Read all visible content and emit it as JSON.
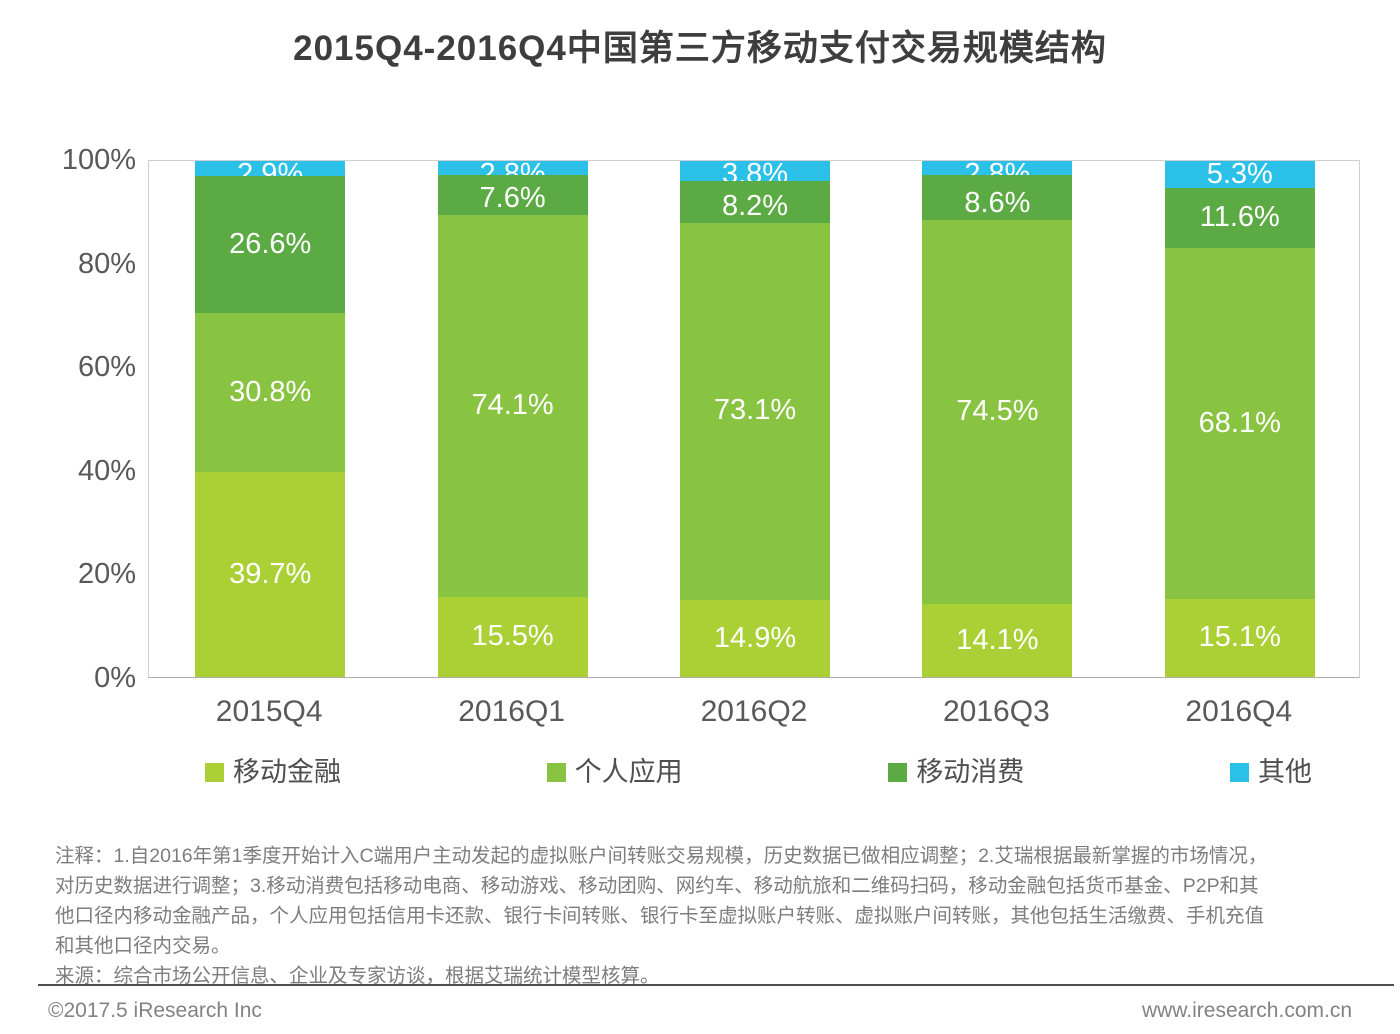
{
  "title": "2015Q4-2016Q4中国第三方移动支付交易规模结构",
  "chart_data": {
    "type": "bar",
    "stacked": true,
    "title": "2015Q4-2016Q4中国第三方移动支付交易规模结构",
    "categories": [
      "2015Q4",
      "2016Q1",
      "2016Q2",
      "2016Q3",
      "2016Q4"
    ],
    "series": [
      {
        "key": "mobile-finance",
        "name": "移动金融",
        "color": "#abd035",
        "values": [
          39.7,
          15.5,
          14.9,
          14.1,
          15.1
        ]
      },
      {
        "key": "personal-application",
        "name": "个人应用",
        "color": "#88c341",
        "values": [
          30.8,
          74.1,
          73.1,
          74.5,
          68.1
        ]
      },
      {
        "key": "mobile-consumption",
        "name": "移动消费",
        "color": "#5caa44",
        "values": [
          26.6,
          7.6,
          8.2,
          8.6,
          11.6
        ]
      },
      {
        "key": "others",
        "name": "其他",
        "color": "#2bc0e8",
        "values": [
          2.9,
          2.8,
          3.8,
          2.8,
          5.3
        ]
      }
    ],
    "y_tick_values": [
      100,
      80,
      60,
      40,
      20,
      0
    ],
    "y_tick_labels": [
      "100%",
      "80%",
      "60%",
      "40%",
      "20%",
      "0%"
    ],
    "ylim": [
      0,
      100
    ],
    "value_suffix": "%",
    "grid": false,
    "legend_position": "bottom"
  },
  "notes": {
    "lines": [
      "注释：1.自2016年第1季度开始计入C端用户主动发起的虚拟账户间转账交易规模，历史数据已做相应调整；2.艾瑞根据最新掌握的市场情况，",
      "对历史数据进行调整；3.移动消费包括移动电商、移动游戏、移动团购、网约车、移动航旅和二维码扫码，移动金融包括货币基金、P2P和其",
      "他口径内移动金融产品，个人应用包括信用卡还款、银行卡间转账、银行卡至虚拟账户转账、虚拟账户间转账，其他包括生活缴费、手机充值",
      "和其他口径内交易。"
    ],
    "source": "来源：综合市场公开信息、企业及专家访谈，根据艾瑞统计模型核算。"
  },
  "footer": {
    "copyright": "©2017.5 iResearch Inc",
    "url": "www.iresearch.com.cn"
  }
}
